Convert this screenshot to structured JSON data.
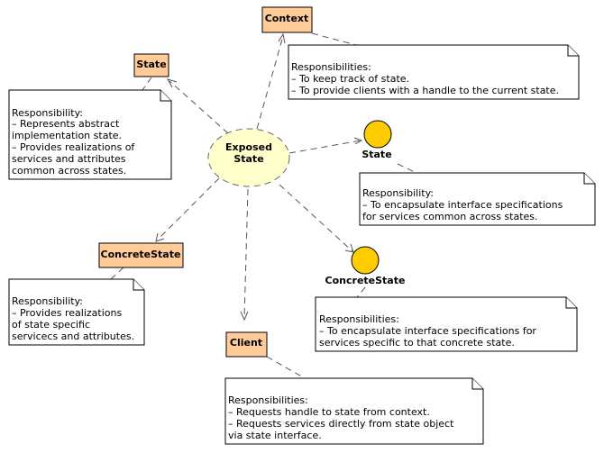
{
  "collaboration": {
    "line1": "Exposed",
    "line2": "State"
  },
  "classes": {
    "context": "Context",
    "state": "State",
    "concrete_state": "ConcreteState",
    "client": "Client"
  },
  "interfaces": {
    "state": "State",
    "concrete_state": "ConcreteState"
  },
  "notes": {
    "context": [
      "Responsibilities:",
      " – To keep track of state.",
      " – To provide clients with a handle to the current state."
    ],
    "state": [
      "Responsibility:",
      " – Represents abstract",
      "implementation state.",
      " – Provides realizations of",
      "services and attributes",
      "common across states."
    ],
    "state_interface": [
      "Responsibility:",
      " – To encapsulate interface specifications",
      "for services common across states."
    ],
    "concrete_state": [
      "Responsibility:",
      " – Provides realizations",
      "of state specific",
      "servicecs and attributes."
    ],
    "concrete_state_interface": [
      "Responsibilities:",
      " – To encapsulate interface specifications for",
      "services specific to that concrete state."
    ],
    "client": [
      "Responsibilities:",
      " – Requests handle to state from context.",
      " – Requests services directly from state object",
      "via state interface."
    ]
  },
  "colors": {
    "class_fill": "#ffcc99",
    "interface_fill": "#ffcc00",
    "collaboration_fill": "#ffffcc",
    "note_fill": "#ffffff"
  }
}
